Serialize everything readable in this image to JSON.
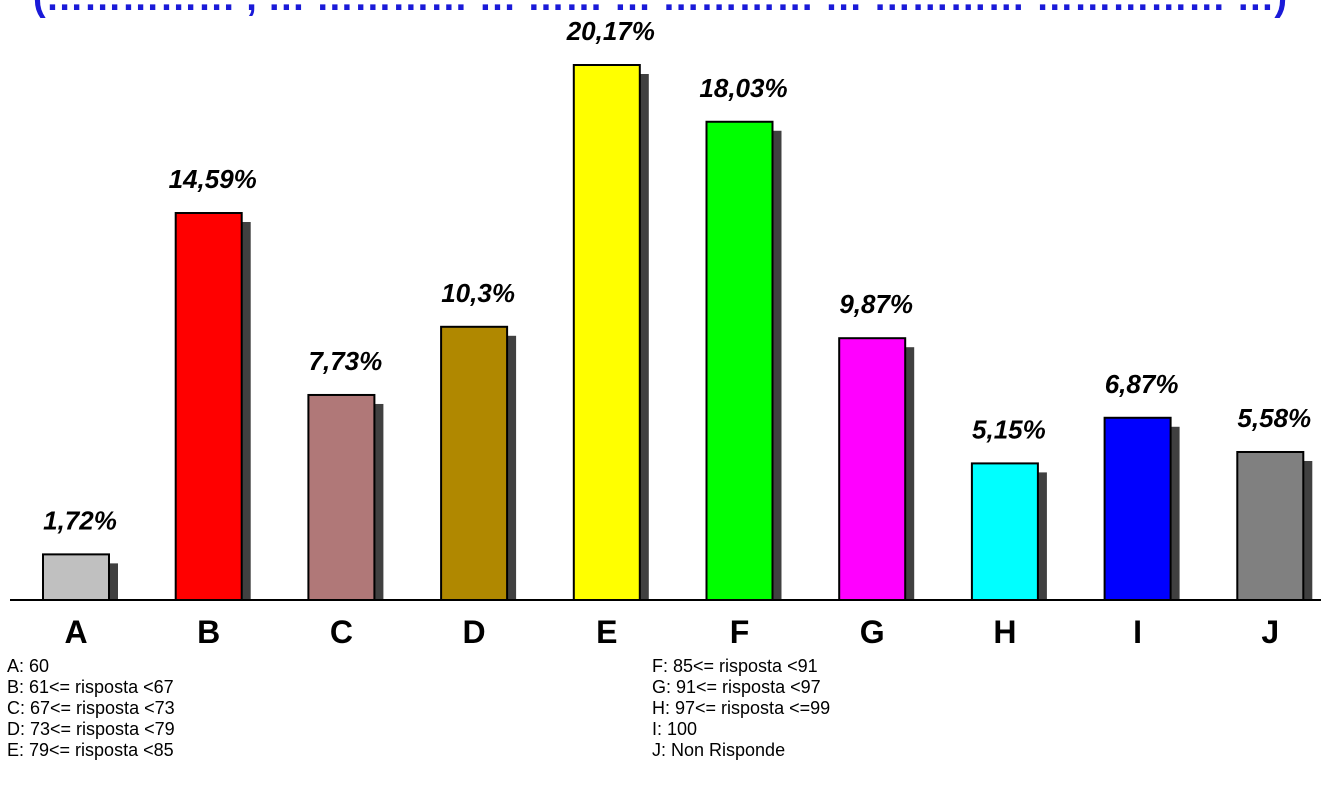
{
  "title": "(…………… , … ………… … …… … ………… … ………… …………… …)",
  "chart_data": {
    "type": "bar",
    "categories": [
      "A",
      "B",
      "C",
      "D",
      "E",
      "F",
      "G",
      "H",
      "I",
      "J"
    ],
    "values": [
      1.72,
      14.59,
      7.73,
      10.3,
      20.17,
      18.03,
      9.87,
      5.15,
      6.87,
      5.58
    ],
    "value_labels": [
      "1,72%",
      "14,59%",
      "7,73%",
      "10,3%",
      "20,17%",
      "18,03%",
      "9,87%",
      "5,15%",
      "6,87%",
      "5,58%"
    ],
    "colors": [
      "#c0c0c0",
      "#ff0000",
      "#b07878",
      "#b08800",
      "#ffff00",
      "#00ff00",
      "#ff00ff",
      "#00ffff",
      "#0000ff",
      "#808080"
    ],
    "ylim": [
      0,
      20.17
    ],
    "grid": false,
    "legend": {
      "left": [
        "A: 60",
        "B: 61<= risposta <67",
        "C: 67<= risposta <73",
        "D: 73<= risposta <79",
        "E: 79<= risposta <85"
      ],
      "right": [
        "F: 85<= risposta <91",
        "G: 91<= risposta <97",
        "H: 97<= risposta <=99",
        "I: 100",
        "J: Non Risponde"
      ]
    }
  }
}
